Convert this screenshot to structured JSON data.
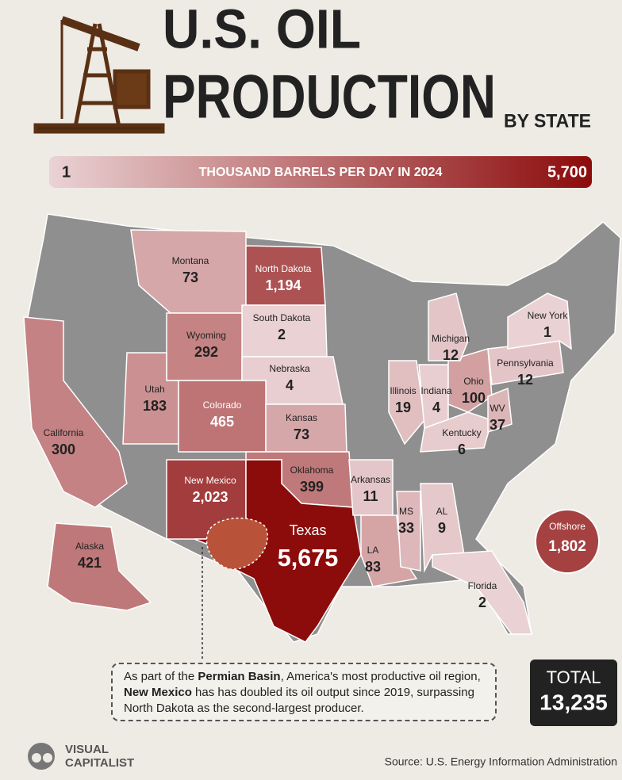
{
  "header": {
    "title_line1": "U.S. OIL",
    "title_line2": "PRODUCTION",
    "title_suffix": "BY STATE"
  },
  "legend": {
    "min": 1,
    "max": {
      "value": 5700,
      "label": "5,700"
    },
    "label": "THOUSAND BARRELS PER DAY IN 2024",
    "colors": [
      "#ead2d4",
      "#8c0b0b"
    ],
    "scale": "log"
  },
  "states": [
    {
      "name": "Montana",
      "value": 73
    },
    {
      "name": "North Dakota",
      "value": 1194,
      "value_label": "1,194"
    },
    {
      "name": "South Dakota",
      "value": 2
    },
    {
      "name": "Wyoming",
      "value": 292
    },
    {
      "name": "Nebraska",
      "value": 4
    },
    {
      "name": "Utah",
      "value": 183
    },
    {
      "name": "Colorado",
      "value": 465
    },
    {
      "name": "Kansas",
      "value": 73
    },
    {
      "name": "California",
      "value": 300
    },
    {
      "name": "New Mexico",
      "value": 2023,
      "value_label": "2,023"
    },
    {
      "name": "Oklahoma",
      "value": 399
    },
    {
      "name": "Texas",
      "value": 5675,
      "value_label": "5,675"
    },
    {
      "name": "Arkansas",
      "value": 11
    },
    {
      "name": "LA",
      "value": 83
    },
    {
      "name": "MS",
      "value": 33
    },
    {
      "name": "AL",
      "value": 9
    },
    {
      "name": "Florida",
      "value": 2
    },
    {
      "name": "Illinois",
      "value": 19
    },
    {
      "name": "Indiana",
      "value": 4
    },
    {
      "name": "Ohio",
      "value": 100
    },
    {
      "name": "Michigan",
      "value": 12
    },
    {
      "name": "Kentucky",
      "value": 6
    },
    {
      "name": "WV",
      "value": 37
    },
    {
      "name": "Pennsylvania",
      "value": 12
    },
    {
      "name": "New York",
      "value": 1
    },
    {
      "name": "Alaska",
      "value": 421
    }
  ],
  "offshore": {
    "name": "Offshore",
    "value": 1802,
    "value_label": "1,802"
  },
  "annotation": [
    {
      "text": "As part of the "
    },
    {
      "text": "Permian Basin",
      "bold": true
    },
    {
      "text": ", America's most productive oil region, "
    },
    {
      "text": "New Mexico",
      "bold": true
    },
    {
      "text": " has has doubled its oil output since 2019, surpassing North Dakota as the second-largest producer."
    }
  ],
  "total": {
    "label": "TOTAL",
    "value": 13235,
    "value_label": "13,235"
  },
  "source": "Source: U.S. Energy Information Administration",
  "brand": [
    "VISUAL",
    "CAPITALIST"
  ]
}
